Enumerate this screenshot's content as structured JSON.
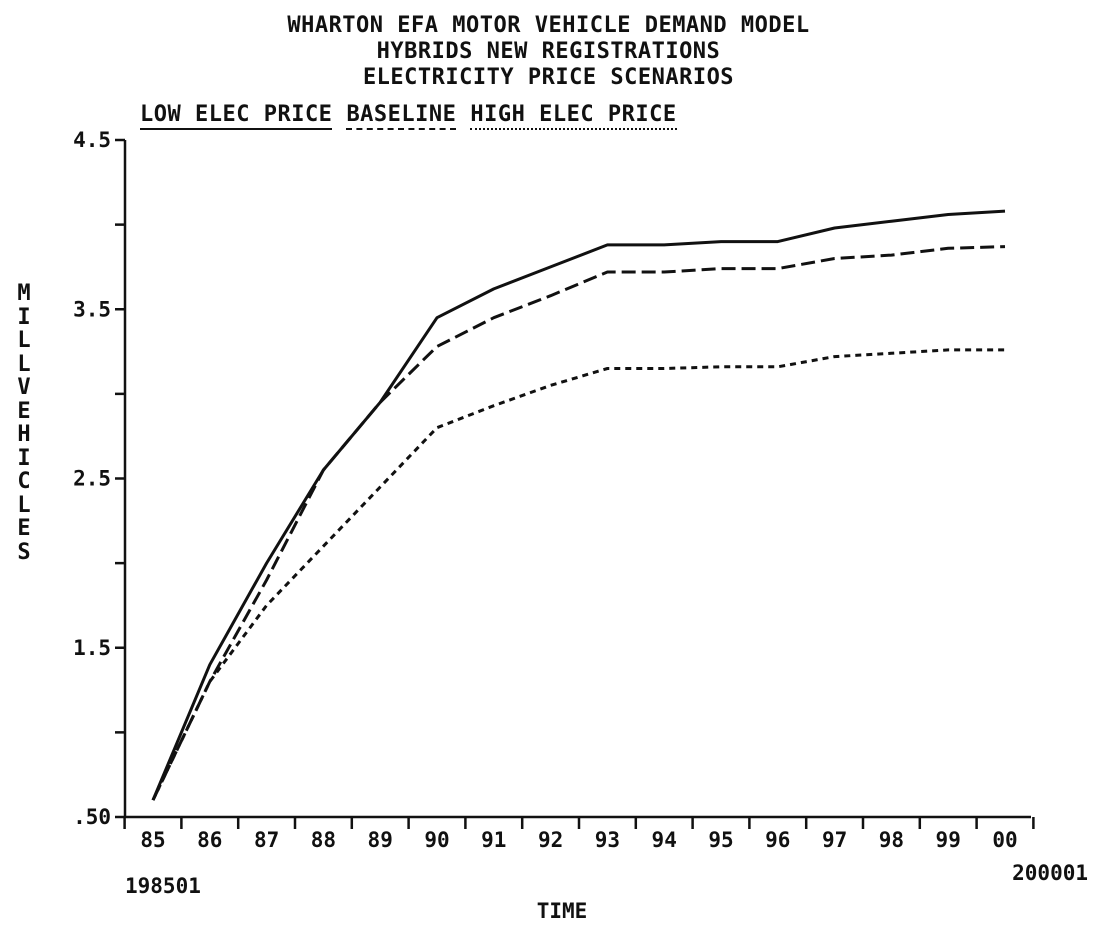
{
  "chart_data": {
    "type": "line",
    "title_lines": [
      "WHARTON EFA MOTOR VEHICLE DEMAND MODEL",
      "HYBRIDS NEW REGISTRATIONS",
      "ELECTRICITY PRICE SCENARIOS"
    ],
    "legend": [
      "LOW ELEC PRICE",
      "BASELINE",
      "HIGH ELEC PRICE"
    ],
    "xlabel": "TIME",
    "ylabel": "MILL VEHICLES",
    "x_start_label": "198501",
    "x_end_label": "200001",
    "categories": [
      "85",
      "86",
      "87",
      "88",
      "89",
      "90",
      "91",
      "92",
      "93",
      "94",
      "95",
      "96",
      "97",
      "98",
      "99",
      "00"
    ],
    "yticks": [
      ".50",
      "1.5",
      "2.5",
      "3.5",
      "4.5"
    ],
    "ylim": [
      0.5,
      4.5
    ],
    "series": [
      {
        "name": "LOW ELEC PRICE",
        "style": "solid",
        "values": [
          0.6,
          1.4,
          2.0,
          2.55,
          2.95,
          3.45,
          3.62,
          3.75,
          3.88,
          3.88,
          3.9,
          3.9,
          3.98,
          4.02,
          4.06,
          4.08
        ]
      },
      {
        "name": "BASELINE",
        "style": "dashed",
        "values": [
          0.6,
          1.3,
          1.9,
          2.55,
          2.95,
          3.28,
          3.45,
          3.58,
          3.72,
          3.72,
          3.74,
          3.74,
          3.8,
          3.82,
          3.86,
          3.87
        ]
      },
      {
        "name": "HIGH ELEC PRICE",
        "style": "dotted",
        "values": [
          0.6,
          1.3,
          1.75,
          2.1,
          2.45,
          2.8,
          2.93,
          3.05,
          3.15,
          3.15,
          3.16,
          3.16,
          3.22,
          3.24,
          3.26,
          3.26
        ]
      }
    ],
    "grid": false
  }
}
